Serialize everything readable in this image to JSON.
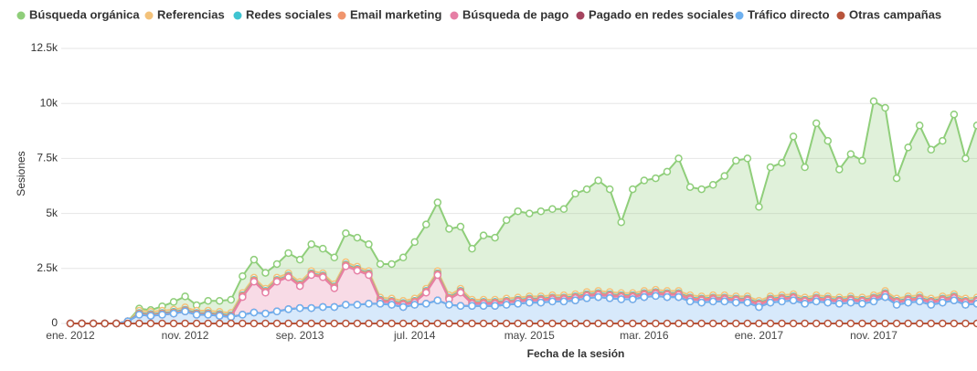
{
  "chart_data": {
    "type": "area",
    "stacked": true,
    "grid": true,
    "markers": true,
    "ylabel": "Sesiones",
    "xlabel": "Fecha de la sesión",
    "categories": [
      "ene. 2012",
      null,
      null,
      null,
      null,
      null,
      null,
      null,
      null,
      null,
      "nov. 2012",
      null,
      null,
      null,
      null,
      null,
      null,
      null,
      null,
      null,
      "sep. 2013",
      null,
      null,
      null,
      null,
      null,
      null,
      null,
      null,
      null,
      "jul. 2014",
      null,
      null,
      null,
      null,
      null,
      null,
      null,
      null,
      null,
      "may. 2015",
      null,
      null,
      null,
      null,
      null,
      null,
      null,
      null,
      null,
      "mar. 2016",
      null,
      null,
      null,
      null,
      null,
      null,
      null,
      null,
      null,
      "ene. 2017",
      null,
      null,
      null,
      null,
      null,
      null,
      null,
      null,
      null,
      "nov. 2017",
      null,
      null,
      null,
      null,
      null,
      null,
      null,
      null,
      null
    ],
    "ylim": [
      0,
      12500
    ],
    "yticks": [
      0,
      {
        "value": 2500,
        "label": "2.5k"
      },
      {
        "value": 5000,
        "label": "5k"
      },
      {
        "value": 7500,
        "label": "7.5k"
      },
      {
        "value": 10000,
        "label": "10k"
      },
      {
        "value": 12500,
        "label": "12.5k"
      }
    ],
    "series": [
      {
        "name": "Búsqueda orgánica",
        "color": "#8fce7a",
        "values": [
          0,
          0,
          0,
          0,
          0,
          0,
          100,
          80,
          200,
          350,
          500,
          250,
          450,
          500,
          600,
          770,
          820,
          720,
          620,
          920,
          1020,
          1220,
          1120,
          1220,
          1320,
          1320,
          1220,
          1520,
          1570,
          1970,
          2570,
          2920,
          3120,
          3020,
          2820,
          2320,
          2920,
          2820,
          3570,
          3920,
          3770,
          3870,
          3920,
          3920,
          4570,
          4670,
          5020,
          4670,
          3220,
          4720,
          5020,
          5070,
          5420,
          6020,
          4920,
          4870,
          5020,
          5420,
          6170,
          6270,
          4270,
          5870,
          6020,
          7170,
          5920,
          7820,
          7070,
          5820,
          6470,
          6220,
          8820,
          8320,
          5470,
          6770,
          7720,
          6770,
          7070,
          8170,
          6370,
          7820
        ]
      },
      {
        "name": "Referencias",
        "color": "#f3c27a",
        "values": [
          0,
          0,
          0,
          0,
          0,
          0,
          100,
          100,
          100,
          100,
          100,
          100,
          100,
          100,
          100,
          100,
          100,
          100,
          100,
          100,
          100,
          100,
          100,
          100,
          100,
          100,
          100,
          100,
          100,
          100,
          100,
          100,
          100,
          100,
          100,
          100,
          100,
          100,
          100,
          100,
          100,
          100,
          100,
          100,
          100,
          100,
          100,
          100,
          100,
          100,
          100,
          100,
          100,
          100,
          100,
          100,
          100,
          100,
          100,
          100,
          100,
          100,
          100,
          100,
          100,
          100,
          100,
          100,
          100,
          100,
          100,
          100,
          100,
          100,
          100,
          100,
          100,
          100,
          100,
          100
        ]
      },
      {
        "name": "Redes sociales",
        "color": "#3fc4d1",
        "values": [
          0,
          0,
          0,
          0,
          0,
          0,
          30,
          30,
          30,
          30,
          30,
          30,
          30,
          30,
          30,
          30,
          30,
          30,
          30,
          30,
          30,
          30,
          30,
          30,
          30,
          30,
          30,
          30,
          30,
          30,
          30,
          30,
          30,
          30,
          30,
          30,
          30,
          30,
          30,
          30,
          30,
          30,
          30,
          30,
          30,
          30,
          30,
          30,
          30,
          30,
          30,
          30,
          30,
          30,
          30,
          30,
          30,
          30,
          30,
          30,
          30,
          30,
          30,
          30,
          30,
          30,
          30,
          30,
          30,
          30,
          30,
          30,
          30,
          30,
          30,
          30,
          30,
          30,
          30,
          30
        ]
      },
      {
        "name": "Email marketing",
        "color": "#f0956d",
        "values": [
          0,
          0,
          0,
          0,
          0,
          0,
          50,
          50,
          50,
          50,
          50,
          50,
          50,
          50,
          50,
          50,
          50,
          50,
          50,
          50,
          50,
          50,
          50,
          50,
          50,
          50,
          50,
          50,
          50,
          50,
          50,
          50,
          50,
          50,
          50,
          50,
          50,
          50,
          50,
          50,
          50,
          50,
          50,
          50,
          50,
          50,
          50,
          50,
          50,
          50,
          50,
          50,
          50,
          50,
          50,
          50,
          50,
          50,
          50,
          50,
          50,
          50,
          50,
          50,
          50,
          50,
          50,
          50,
          50,
          50,
          50,
          50,
          50,
          50,
          50,
          50,
          50,
          50,
          50,
          50
        ]
      },
      {
        "name": "Búsqueda de pago",
        "color": "#e67fa5",
        "values": [
          0,
          0,
          0,
          0,
          0,
          0,
          0,
          0,
          0,
          0,
          0,
          0,
          0,
          0,
          0,
          800,
          1400,
          950,
          1350,
          1450,
          1000,
          1500,
          1350,
          850,
          1750,
          1550,
          1300,
          100,
          100,
          100,
          100,
          500,
          1150,
          250,
          600,
          100,
          100,
          100,
          100,
          100,
          100,
          100,
          100,
          100,
          100,
          100,
          100,
          100,
          100,
          100,
          100,
          100,
          100,
          100,
          100,
          100,
          100,
          100,
          100,
          100,
          100,
          100,
          100,
          100,
          100,
          100,
          100,
          100,
          100,
          100,
          100,
          100,
          100,
          100,
          100,
          100,
          100,
          100,
          100,
          100
        ]
      },
      {
        "name": "Pagado en redes sociales",
        "color": "#a5445f",
        "values": [
          0,
          0,
          0,
          0,
          0,
          0,
          0,
          0,
          0,
          0,
          0,
          0,
          0,
          0,
          0,
          0,
          0,
          0,
          0,
          0,
          0,
          0,
          0,
          0,
          0,
          0,
          0,
          0,
          0,
          0,
          0,
          0,
          0,
          0,
          0,
          0,
          0,
          0,
          0,
          0,
          0,
          0,
          0,
          0,
          0,
          0,
          0,
          0,
          0,
          0,
          0,
          0,
          0,
          0,
          0,
          0,
          0,
          0,
          0,
          0,
          0,
          0,
          0,
          0,
          0,
          0,
          0,
          0,
          0,
          0,
          0,
          0,
          0,
          0,
          0,
          0,
          0,
          0,
          0,
          0
        ]
      },
      {
        "name": "Tráfico directo",
        "color": "#6fb1f0",
        "values": [
          0,
          0,
          0,
          0,
          0,
          100,
          400,
          350,
          400,
          450,
          550,
          400,
          400,
          350,
          300,
          400,
          500,
          450,
          550,
          650,
          700,
          700,
          750,
          750,
          850,
          850,
          900,
          900,
          850,
          750,
          850,
          900,
          1050,
          850,
          800,
          800,
          800,
          800,
          850,
          900,
          950,
          950,
          1000,
          1000,
          1050,
          1150,
          1200,
          1150,
          1100,
          1100,
          1200,
          1250,
          1200,
          1200,
          1000,
          950,
          1000,
          1000,
          950,
          950,
          750,
          950,
          1000,
          1050,
          900,
          1000,
          950,
          900,
          950,
          900,
          1000,
          1200,
          850,
          950,
          1000,
          850,
          950,
          1050,
          850,
          900
        ]
      },
      {
        "name": "Otras campañas",
        "color": "#b8543b",
        "values": [
          0,
          0,
          0,
          0,
          0,
          0,
          0,
          0,
          0,
          0,
          0,
          0,
          0,
          0,
          0,
          0,
          0,
          0,
          0,
          0,
          0,
          0,
          0,
          0,
          0,
          0,
          0,
          0,
          0,
          0,
          0,
          0,
          0,
          0,
          0,
          0,
          0,
          0,
          0,
          0,
          0,
          0,
          0,
          0,
          0,
          0,
          0,
          0,
          0,
          0,
          0,
          0,
          0,
          0,
          0,
          0,
          0,
          0,
          0,
          0,
          0,
          0,
          0,
          0,
          0,
          0,
          0,
          0,
          0,
          0,
          0,
          0,
          0,
          0,
          0,
          0,
          0,
          0,
          0,
          0
        ]
      }
    ]
  }
}
